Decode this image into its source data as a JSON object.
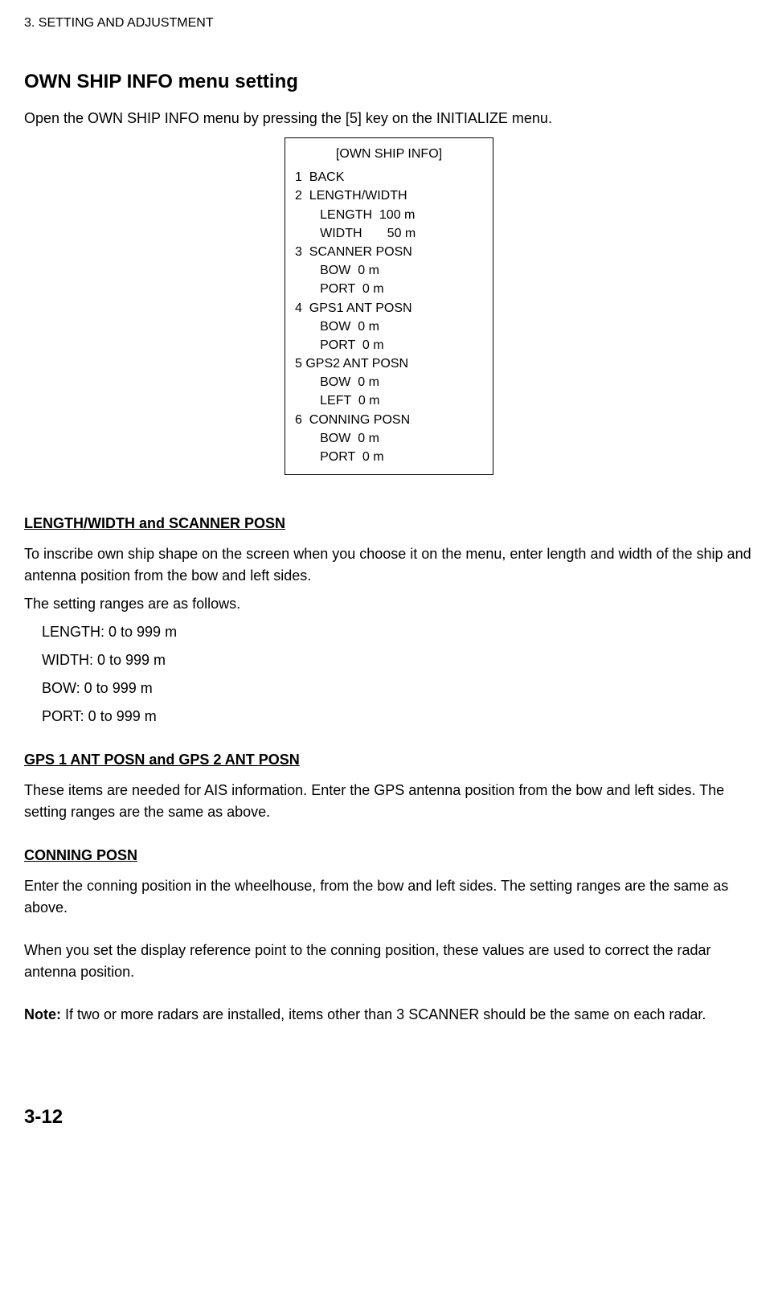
{
  "header": "3. SETTING AND ADJUSTMENT",
  "section_title": "OWN SHIP INFO menu setting",
  "intro": "Open the OWN SHIP INFO menu by pressing the [5] key on the INITIALIZE menu.",
  "menu": {
    "title": "[OWN SHIP INFO]",
    "lines": [
      "1  BACK",
      "2  LENGTH/WIDTH",
      "       LENGTH  100 m",
      "       WIDTH       50 m",
      "3  SCANNER POSN",
      "       BOW  0 m",
      "       PORT  0 m",
      "4  GPS1 ANT POSN",
      "       BOW  0 m",
      "       PORT  0 m",
      "5 GPS2 ANT POSN",
      "       BOW  0 m",
      "       LEFT  0 m",
      "6  CONNING POSN",
      "       BOW  0 m",
      "       PORT  0 m"
    ]
  },
  "sub1": {
    "heading": "LENGTH/WIDTH and SCANNER POSN",
    "para1": "To inscribe own ship shape on the screen when you choose it on the menu, enter length and width of the ship and antenna position from the bow and left sides.",
    "para2": "The setting ranges are as follows.",
    "ranges": [
      "LENGTH: 0 to 999 m",
      "WIDTH:    0 to 999 m",
      "BOW:       0 to 999 m",
      "PORT:       0 to 999 m"
    ]
  },
  "sub2": {
    "heading": "GPS 1 ANT POSN and GPS 2 ANT POSN",
    "para": "These items are needed for AIS information. Enter the GPS antenna position from the bow and left sides. The setting ranges are the same as above."
  },
  "sub3": {
    "heading": "CONNING POSN",
    "para1": "Enter the conning position in the wheelhouse, from the bow and left sides. The setting ranges are the same as above.",
    "para2": "When you set the display reference point to the conning position, these values are used to correct the radar antenna position.",
    "note_label": "Note:",
    "note_text": " If two or more radars are installed, items other than 3 SCANNER should be the same on each radar."
  },
  "page_number": "3-12"
}
